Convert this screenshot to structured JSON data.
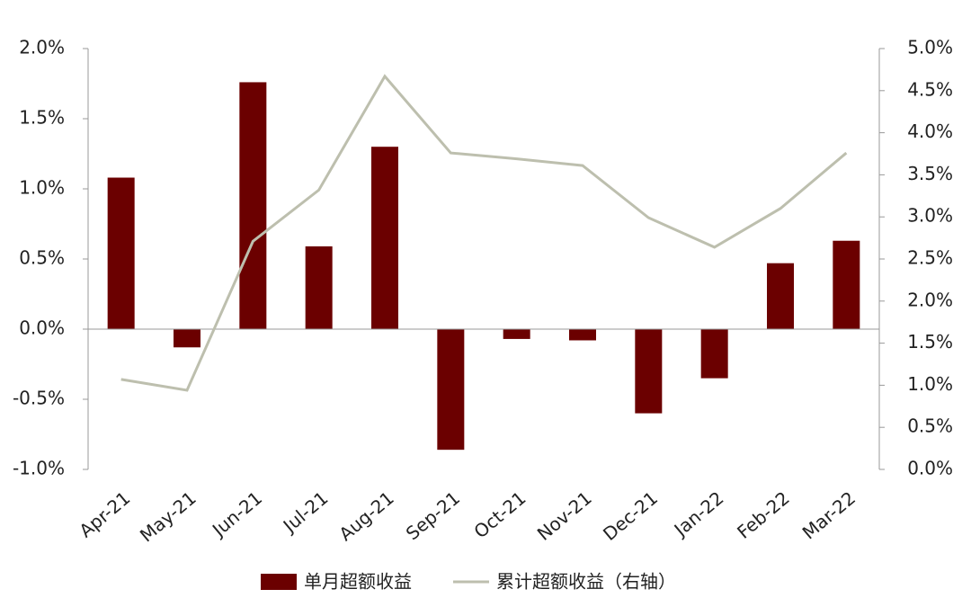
{
  "chart_data": {
    "type": "bar-line",
    "categories": [
      "Apr-21",
      "May-21",
      "Jun-21",
      "Jul-21",
      "Aug-21",
      "Sep-21",
      "Oct-21",
      "Nov-21",
      "Dec-21",
      "Jan-22",
      "Feb-22",
      "Mar-22"
    ],
    "series": [
      {
        "name": "单月超额收益",
        "type": "bar",
        "color": "#6b0000",
        "values": [
          1.08,
          -0.13,
          1.76,
          0.59,
          1.3,
          -0.86,
          -0.07,
          -0.08,
          -0.6,
          -0.35,
          0.47,
          0.63
        ]
      },
      {
        "name": "累计超额收益（右轴）",
        "type": "line",
        "axis": "y2",
        "color": "#bdbfae",
        "values": [
          1.07,
          0.94,
          2.71,
          3.32,
          4.67,
          3.76,
          3.69,
          3.61,
          2.99,
          2.64,
          3.1,
          3.76
        ]
      }
    ],
    "ylim": [
      -1.0,
      2.0
    ],
    "yticks": [
      {
        "value": -1.0,
        "label": "-1.0%"
      },
      {
        "value": -0.5,
        "label": "-0.5%"
      },
      {
        "value": 0,
        "label": "0.0%"
      },
      {
        "value": 0.5,
        "label": "0.5%"
      },
      {
        "value": 1.0,
        "label": "1.0%"
      },
      {
        "value": 1.5,
        "label": "1.5%"
      },
      {
        "value": 2.0,
        "label": "2.0%"
      }
    ],
    "y2lim": [
      0,
      5.0
    ],
    "y2ticks": [
      {
        "value": 0,
        "label": "0.0%"
      },
      {
        "value": 0.5,
        "label": "0.5%"
      },
      {
        "value": 1.0,
        "label": "1.0%"
      },
      {
        "value": 1.5,
        "label": "1.5%"
      },
      {
        "value": 2.0,
        "label": "2.0%"
      },
      {
        "value": 2.5,
        "label": "2.5%"
      },
      {
        "value": 3.0,
        "label": "3.0%"
      },
      {
        "value": 3.5,
        "label": "3.5%"
      },
      {
        "value": 4.0,
        "label": "4.0%"
      },
      {
        "value": 4.5,
        "label": "4.5%"
      },
      {
        "value": 5.0,
        "label": "5.0%"
      }
    ],
    "legend": "bottom"
  }
}
